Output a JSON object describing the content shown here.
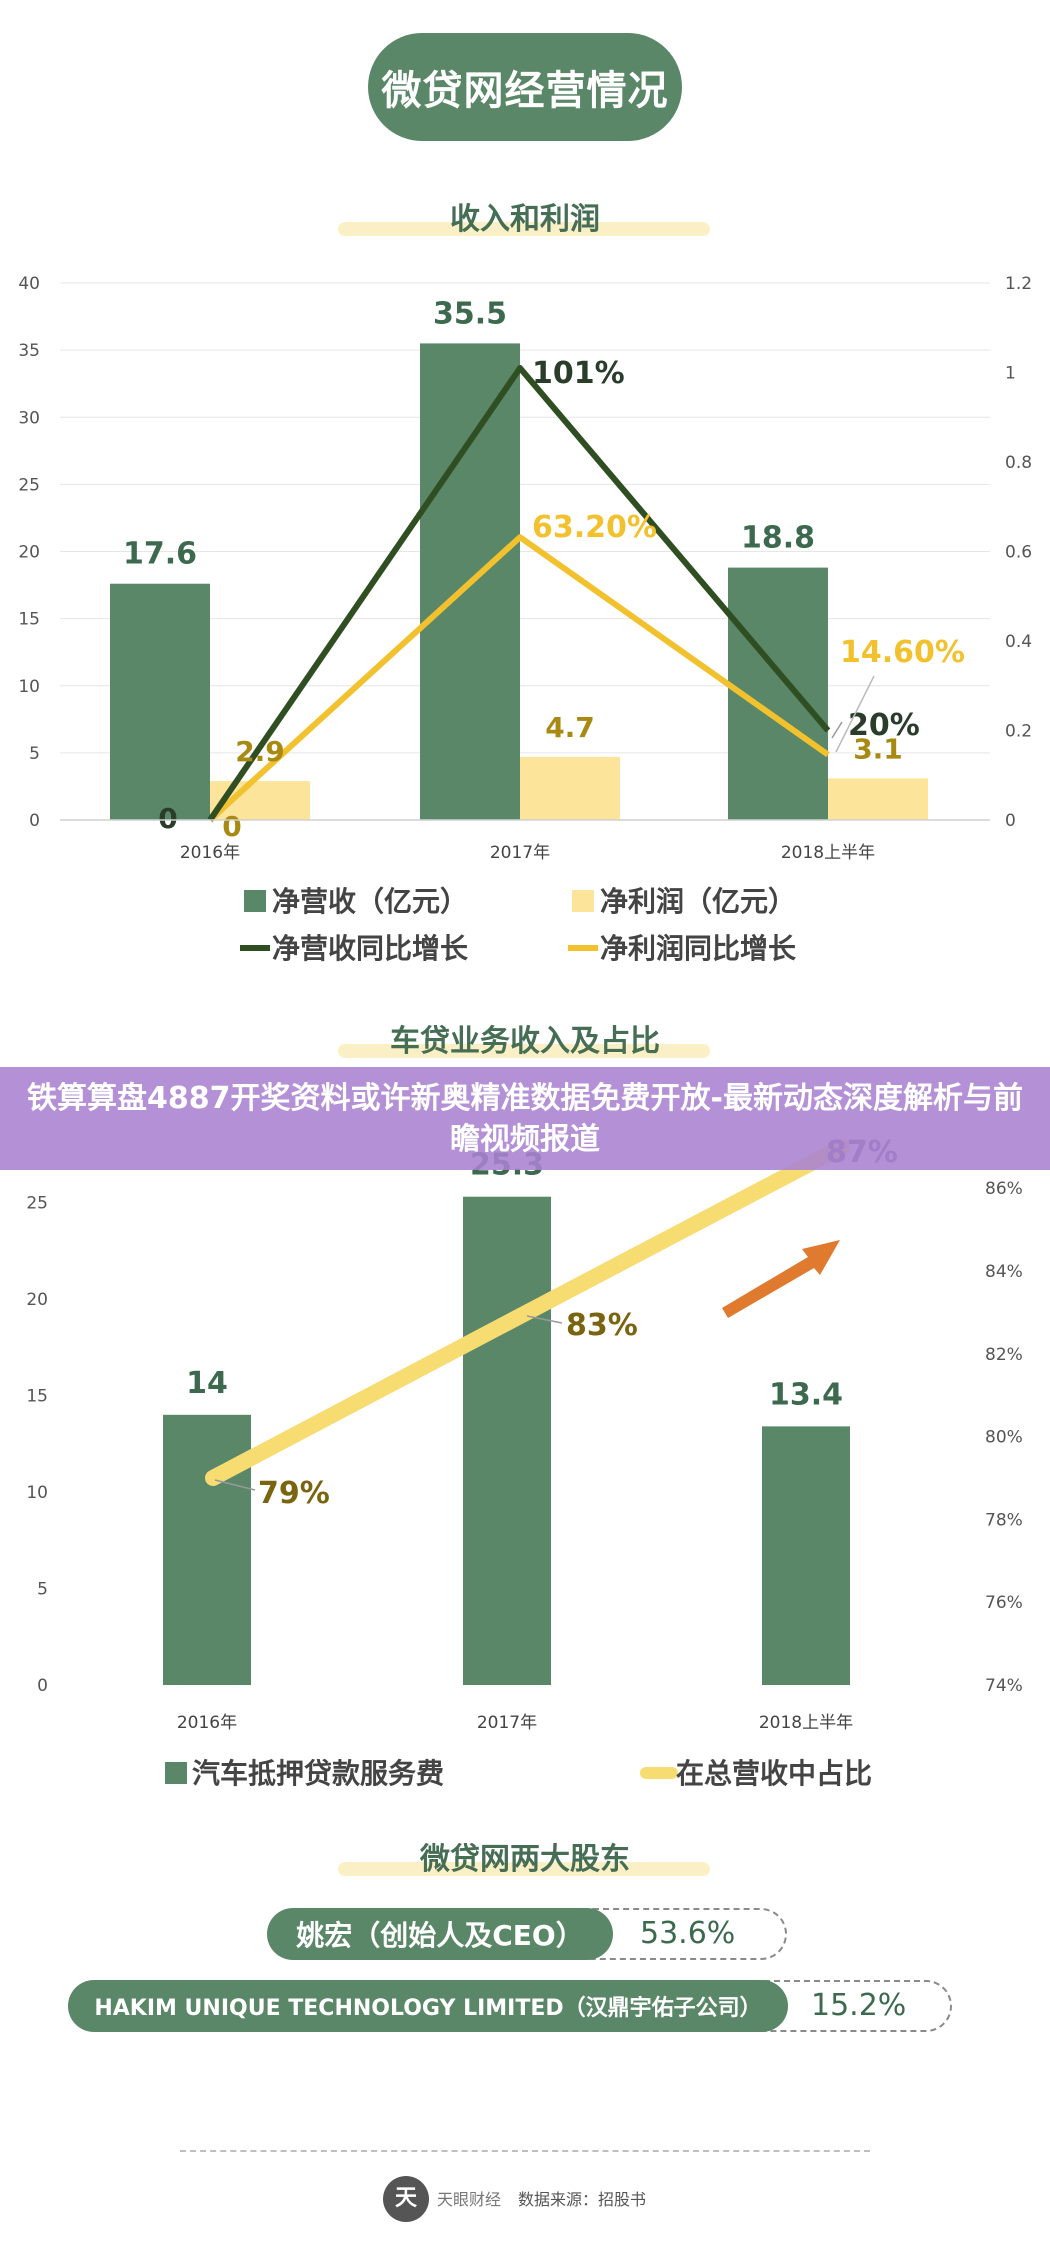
{
  "page_title": "微贷网经营情况",
  "banner_text": "铁算算盘4887开奖资料或许新奥精准数据免费开放-最新动态深度解析与前瞻视频报道",
  "colors": {
    "dark_green": "#5a8767",
    "light_yellow": "#fce49a",
    "line_dark": "#2f4f22",
    "line_yellow": "#f2c12e",
    "share_line": "#f7dc72",
    "arrow": "#e07a2e",
    "label_gold": "#a88a12",
    "label_dark": "#2a3d2b"
  },
  "chart_data": [
    {
      "type": "bar",
      "title": "收入和利润",
      "categories": [
        "2016年",
        "2017年",
        "2018上半年"
      ],
      "y_left_ticks": [
        "0",
        "5",
        "10",
        "15",
        "20",
        "25",
        "30",
        "35",
        "40"
      ],
      "y_right_ticks": [
        "0",
        "0.2",
        "0.4",
        "0.6",
        "0.8",
        "1",
        "1.2"
      ],
      "ylim_left": [
        0,
        40
      ],
      "ylim_right": [
        0,
        1.2
      ],
      "series": [
        {
          "name": "净营收（亿元）",
          "kind": "bar",
          "axis": "left",
          "values": [
            17.6,
            35.5,
            18.8
          ],
          "labels": [
            "17.6",
            "35.5",
            "18.8"
          ]
        },
        {
          "name": "净利润（亿元）",
          "kind": "bar",
          "axis": "left",
          "values": [
            2.9,
            4.7,
            3.1
          ],
          "labels": [
            "2.9",
            "4.7",
            "3.1"
          ]
        },
        {
          "name": "净营收同比增长",
          "kind": "line",
          "axis": "right",
          "values": [
            0,
            1.01,
            0.2
          ],
          "labels": [
            "0",
            "101%",
            "20%"
          ]
        },
        {
          "name": "净利润同比增长",
          "kind": "line",
          "axis": "right",
          "values": [
            0,
            0.632,
            0.146
          ],
          "labels": [
            "0",
            "63.20%",
            "14.60%"
          ]
        }
      ]
    },
    {
      "type": "bar",
      "title": "车贷业务收入及占比",
      "categories": [
        "2016年",
        "2017年",
        "2018上半年"
      ],
      "y_left_ticks": [
        "0",
        "5",
        "10",
        "15",
        "20",
        "25"
      ],
      "y_right_ticks": [
        "74%",
        "76%",
        "78%",
        "80%",
        "82%",
        "84%",
        "86%"
      ],
      "ylim_left": [
        0,
        30
      ],
      "ylim_right": [
        74,
        88
      ],
      "series": [
        {
          "name": "汽车抵押贷款服务费",
          "kind": "bar",
          "axis": "left",
          "values": [
            14,
            25.3,
            13.4
          ],
          "labels": [
            "14",
            "25.3",
            "13.4"
          ]
        },
        {
          "name": "在总营收中占比",
          "kind": "line",
          "axis": "right",
          "values": [
            79,
            83,
            87
          ],
          "labels": [
            "79%",
            "83%",
            "87%"
          ]
        }
      ]
    }
  ],
  "shareholders": {
    "title": "微贷网两大股东",
    "items": [
      {
        "name": "姚宏（创始人及CEO）",
        "share": "53.6%"
      },
      {
        "name": "HAKIM UNIQUE TECHNOLOGY LIMITED（汉鼎宇佑子公司）",
        "share": "15.2%"
      }
    ]
  },
  "footer": {
    "logo_char": "天",
    "logo_text": "天眼财经",
    "source": "数据来源：招股书"
  }
}
